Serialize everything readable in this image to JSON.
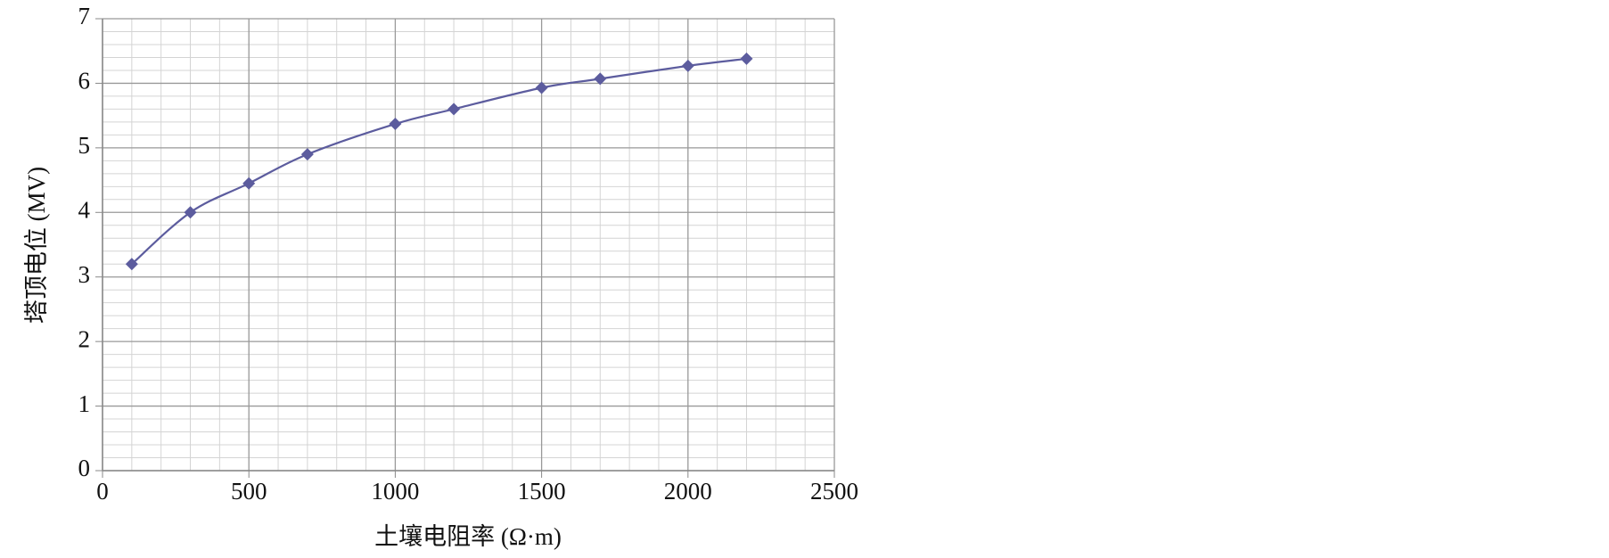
{
  "chart_data": {
    "type": "line",
    "x_label": "土壤电阻率 (Ω·m)",
    "y_label": "塔顶电位 (MV)",
    "x": [
      100,
      300,
      500,
      700,
      1000,
      1200,
      1500,
      1700,
      2000,
      2200
    ],
    "series": [
      {
        "color": "#5c5c9e",
        "values": [
          3.2,
          4.0,
          4.45,
          4.9,
          5.37,
          5.6,
          5.93,
          6.07,
          6.27,
          6.38
        ]
      }
    ],
    "xlim": [
      0,
      2500
    ],
    "xticks": [
      0,
      500,
      1000,
      1500,
      2000,
      2500
    ],
    "ylim": [
      0,
      7
    ],
    "yticks": [
      0,
      1,
      2,
      3,
      4,
      5,
      6,
      7
    ],
    "grid": true,
    "minor_grid": true,
    "smooth": true,
    "marker": "diamond"
  }
}
